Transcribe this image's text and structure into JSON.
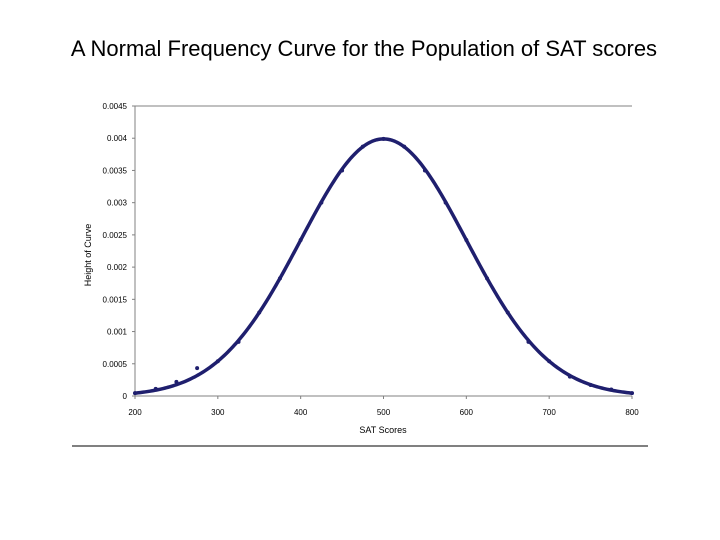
{
  "slide": {
    "title": "A Normal Frequency Curve for the Population of SAT scores"
  },
  "chart_data": {
    "type": "line",
    "title": "A Normal Frequency Curve for the Population of SAT scores",
    "xlabel": "SAT Scores",
    "ylabel": "Height of Curve",
    "xlim": [
      200,
      800
    ],
    "ylim": [
      0,
      0.0045
    ],
    "x_ticks": [
      "200",
      "300",
      "400",
      "500",
      "600",
      "700",
      "800"
    ],
    "y_ticks": [
      "0",
      "0.0005",
      "0.001",
      "0.0015",
      "0.002",
      "0.0025",
      "0.003",
      "0.0035",
      "0.004",
      "0.0045"
    ],
    "grid": false,
    "legend": "none",
    "series": [
      {
        "color": "#1f1f6e",
        "x": [
          200,
          225,
          250,
          275,
          300,
          325,
          350,
          375,
          400,
          425,
          450,
          475,
          500,
          525,
          550,
          575,
          600,
          625,
          650,
          675,
          700,
          725,
          750,
          775,
          800
        ],
        "y": [
          4.43e-05,
          0.0001098,
          0.0002191,
          0.0004317,
          0.00054,
          0.00084,
          0.001295,
          0.001826,
          0.00242,
          0.003,
          0.0035,
          0.00387,
          0.003989,
          0.00387,
          0.0035,
          0.003,
          0.00242,
          0.001826,
          0.001295,
          0.00084,
          0.00054,
          0.0003,
          0.00017,
          0.0001,
          4.43e-05
        ]
      }
    ]
  }
}
